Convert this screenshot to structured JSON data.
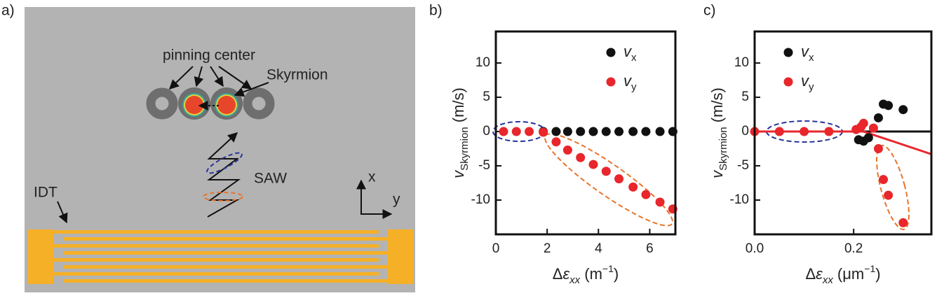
{
  "panel_labels": [
    "a)",
    "b)",
    "c)"
  ],
  "diagram": {
    "pinning_label": "pinning center",
    "skyrmion_label": "Skyrmion",
    "saw_label": "SAW",
    "idt_label": "IDT",
    "axis_x": "x",
    "axis_y": "y"
  },
  "chart_data": [
    {
      "type": "scatter",
      "xlabel": [
        "Δ",
        "ε",
        "xx",
        " (m",
        "−1",
        ")"
      ],
      "ylabel": [
        "v",
        "Skyrmion",
        " (m/s)"
      ],
      "xlim": [
        0,
        7
      ],
      "xticks": [
        0,
        2,
        4,
        6
      ],
      "ylim": [
        -15,
        14.6
      ],
      "yticks": [
        -10,
        -5,
        0,
        5,
        10
      ],
      "legend": "upper right",
      "series": [
        {
          "name": [
            "v",
            "x"
          ],
          "color": "#111111",
          "x": [
            1.85,
            2.35,
            2.8,
            3.3,
            3.8,
            4.3,
            4.8,
            5.35,
            5.85,
            6.4,
            6.9
          ],
          "values": [
            0,
            0,
            0,
            0,
            0,
            0,
            0,
            0,
            0,
            0,
            0
          ]
        },
        {
          "name": [
            "v",
            "y"
          ],
          "color": "#e8262b",
          "x": [
            0.3,
            0.8,
            1.3,
            1.85,
            2.35,
            2.8,
            3.3,
            3.8,
            4.3,
            4.8,
            5.35,
            5.85,
            6.4,
            6.9
          ],
          "values": [
            0,
            0,
            0,
            -0.1,
            -1.5,
            -2.7,
            -3.8,
            -4.8,
            -5.8,
            -6.9,
            -8.1,
            -9.2,
            -10.3,
            -11.3
          ]
        }
      ]
    },
    {
      "type": "scatter",
      "xlabel": [
        "Δ",
        "ε",
        "xx",
        " (μm",
        "−1",
        ")"
      ],
      "ylabel": [
        "v",
        "Skyrmion",
        " (m/s)"
      ],
      "xlim": [
        0,
        0.357
      ],
      "xticks": [
        {
          "value": 0,
          "label": "0.0"
        },
        {
          "value": 0.2,
          "label": "0.2"
        }
      ],
      "ylim": [
        -15,
        14.6
      ],
      "yticks": [
        -10,
        -5,
        0,
        5,
        10
      ],
      "legend": "upper left",
      "fits": [
        {
          "color": "#111111",
          "x": [
            0.2,
            0.357
          ],
          "values": [
            0,
            0
          ]
        },
        {
          "color": "#e8262b",
          "x": [
            0,
            0.22,
            0.357
          ],
          "values": [
            0,
            0,
            -3.3
          ]
        }
      ],
      "series": [
        {
          "name": [
            "v",
            "x"
          ],
          "color": "#111111",
          "x": [
            0.21,
            0.22,
            0.23,
            0.25,
            0.26,
            0.27,
            0.3
          ],
          "values": [
            -1.2,
            -1.4,
            -0.9,
            2,
            4,
            3.8,
            3.2
          ]
        },
        {
          "name": [
            "v",
            "y"
          ],
          "color": "#e8262b",
          "x": [
            0,
            0.05,
            0.1,
            0.15,
            0.205,
            0.215,
            0.22,
            0.24,
            0.25,
            0.26,
            0.27,
            0.3
          ],
          "values": [
            0,
            0,
            0,
            0,
            0.3,
            0.7,
            1.2,
            0.5,
            -2.5,
            -7,
            -9.3,
            -13.3
          ]
        }
      ]
    }
  ]
}
